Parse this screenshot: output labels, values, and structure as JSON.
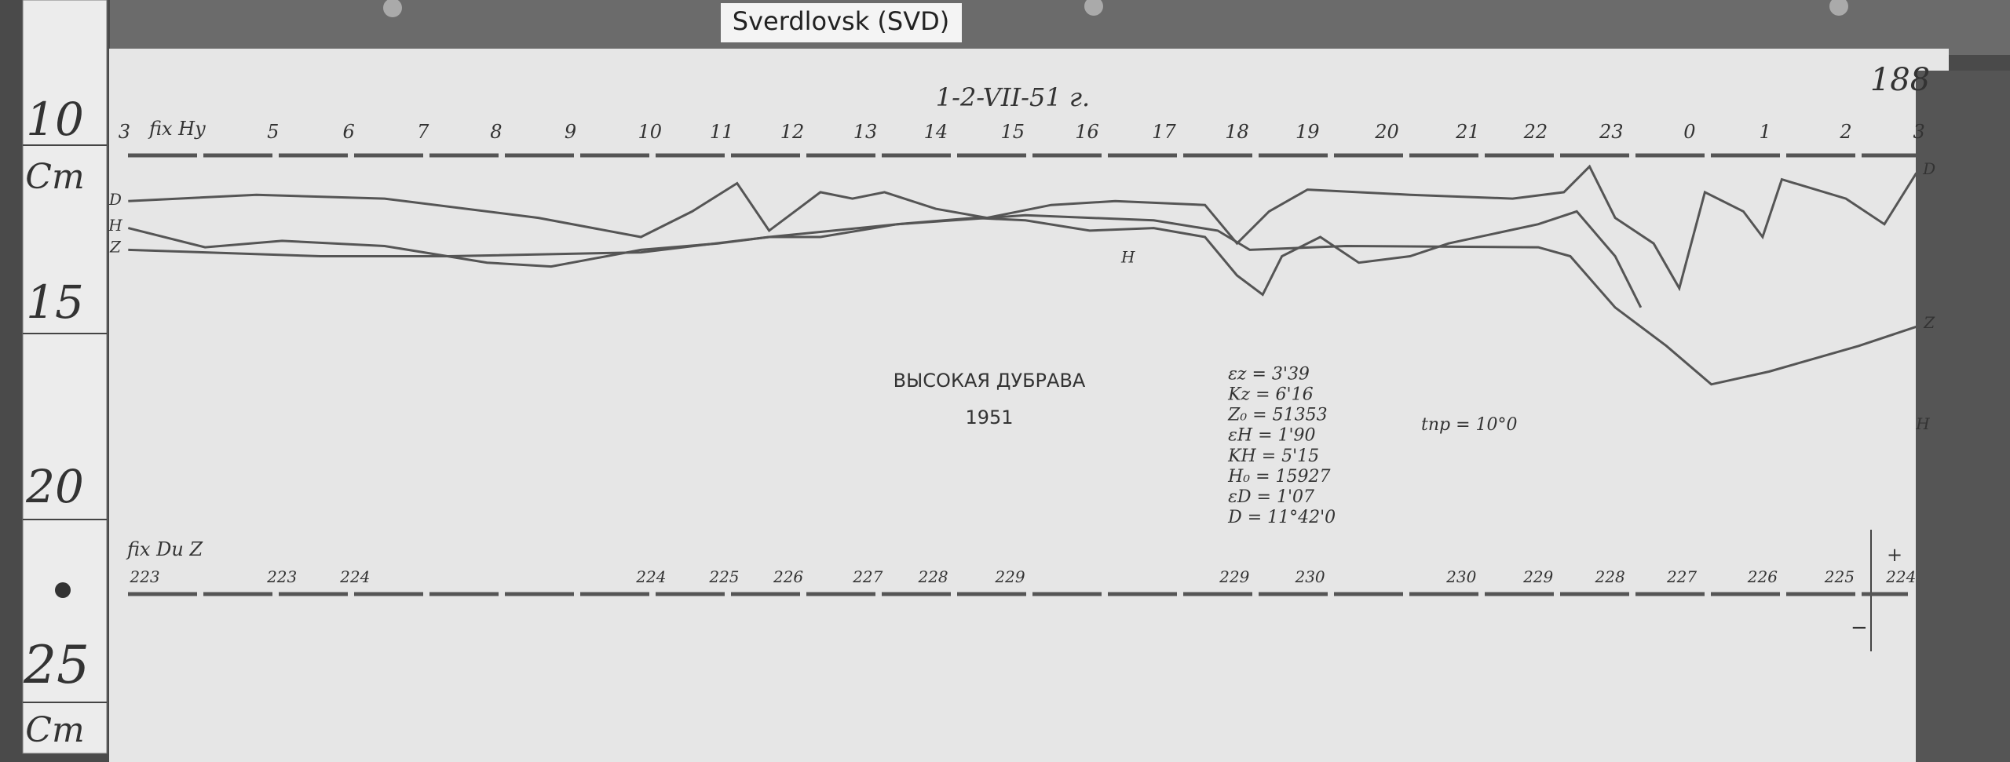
{
  "label": "Sverdlovsk (SVD)",
  "ruler": {
    "marks": [
      "10",
      "15",
      "20",
      "25"
    ],
    "unit_top": "Cm",
    "unit_bottom": "Cm"
  },
  "sheet": {
    "number": "188",
    "header": [
      "1-2-VII-51 г."
    ],
    "upper_fix": "fix Hy",
    "hours": [
      "3",
      "5",
      "6",
      "7",
      "8",
      "9",
      "10",
      "11",
      "12",
      "13",
      "14",
      "15",
      "16",
      "17",
      "18",
      "19",
      "20",
      "21",
      "22",
      "23",
      "0",
      "1",
      "2",
      "3"
    ],
    "curve_labels": {
      "d_left": "D",
      "h_left": "H",
      "z_left": "Z",
      "d_right": "D",
      "z_right": "Z",
      "h_right": "H",
      "h_mid": "H"
    },
    "station": "ВЫСОКАЯ ДУБРАВА",
    "year": "1951",
    "constants": [
      "εz = 3'39",
      "Kz = 6'16",
      "Z₀ = 51353",
      "εH = 1'90",
      "KH = 5'15",
      "H₀ = 15927",
      "εD = 1'07",
      "D = 11°42'0"
    ],
    "temperature": "tпр = 10°0",
    "lower_fix": "fix Du Z",
    "lower_labels": [
      "223",
      "223",
      "224",
      "224",
      "225",
      "226",
      "227",
      "228",
      "229",
      "229",
      "230",
      "230",
      "229",
      "228",
      "227",
      "226",
      "225",
      "224"
    ],
    "plus": "+",
    "minus": "−"
  }
}
